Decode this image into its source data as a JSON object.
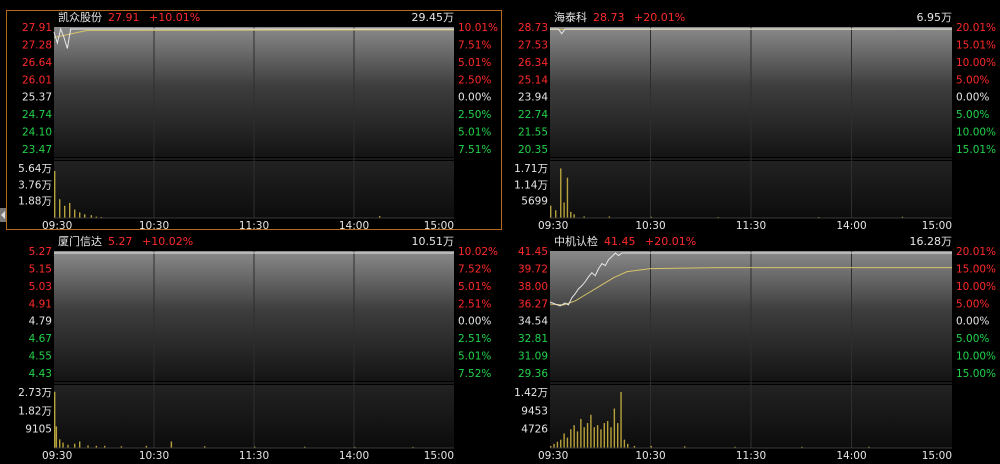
{
  "colors": {
    "up": "#ff2a2a",
    "down": "#22d34a",
    "neutral": "#e6e6e6",
    "price_line": "#e8e8e8",
    "avg_line": "#d8c36a",
    "volume": "#b8a23c",
    "frame_active": "#b56a1c",
    "grid": "#3a3a3a"
  },
  "chart_data": [
    {
      "type": "line",
      "name": "凯众股份",
      "price": "27.91",
      "change_pct": "+10.01%",
      "volume_label": "29.45万",
      "active": true,
      "y_labels_left": [
        {
          "text": "27.91",
          "tone": "up"
        },
        {
          "text": "27.28",
          "tone": "up"
        },
        {
          "text": "26.64",
          "tone": "up"
        },
        {
          "text": "26.01",
          "tone": "up"
        },
        {
          "text": "25.37",
          "tone": "neutral"
        },
        {
          "text": "24.74",
          "tone": "down"
        },
        {
          "text": "24.10",
          "tone": "down"
        },
        {
          "text": "23.47",
          "tone": "down"
        }
      ],
      "y_labels_right": [
        {
          "text": "10.01%",
          "tone": "up"
        },
        {
          "text": "7.51%",
          "tone": "up"
        },
        {
          "text": "5.01%",
          "tone": "up"
        },
        {
          "text": "2.50%",
          "tone": "up"
        },
        {
          "text": "0.00%",
          "tone": "neutral"
        },
        {
          "text": "2.50%",
          "tone": "down"
        },
        {
          "text": "5.01%",
          "tone": "down"
        },
        {
          "text": "7.51%",
          "tone": "down"
        }
      ],
      "vol_labels": [
        "5.64万",
        "3.76万",
        "1.88万"
      ],
      "x_labels": [
        "09:30",
        "10:30",
        "11:30",
        "14:00",
        "15:00"
      ],
      "price_range": [
        23.47,
        27.91
      ],
      "volume_max": 5.64,
      "price_points": [
        [
          0,
          27.8
        ],
        [
          2,
          27.4
        ],
        [
          4,
          27.91
        ],
        [
          6,
          27.6
        ],
        [
          8,
          27.2
        ],
        [
          10,
          27.91
        ],
        [
          12,
          27.91
        ],
        [
          240,
          27.91
        ]
      ],
      "avg_points": [
        [
          0,
          27.6
        ],
        [
          20,
          27.86
        ],
        [
          240,
          27.88
        ]
      ],
      "volume_bars": [
        [
          0,
          5.0
        ],
        [
          3,
          2.0
        ],
        [
          6,
          1.3
        ],
        [
          9,
          1.6
        ],
        [
          12,
          0.9
        ],
        [
          15,
          0.6
        ],
        [
          18,
          0.4
        ],
        [
          22,
          0.3
        ],
        [
          25,
          0.15
        ],
        [
          28,
          0.1
        ],
        [
          195,
          0.2
        ]
      ]
    },
    {
      "type": "line",
      "name": "海泰科",
      "price": "28.73",
      "change_pct": "+20.01%",
      "volume_label": "6.95万",
      "active": false,
      "y_labels_left": [
        {
          "text": "28.73",
          "tone": "up"
        },
        {
          "text": "27.53",
          "tone": "up"
        },
        {
          "text": "26.34",
          "tone": "up"
        },
        {
          "text": "25.14",
          "tone": "up"
        },
        {
          "text": "23.94",
          "tone": "neutral"
        },
        {
          "text": "22.74",
          "tone": "down"
        },
        {
          "text": "21.55",
          "tone": "down"
        },
        {
          "text": "20.35",
          "tone": "down"
        }
      ],
      "y_labels_right": [
        {
          "text": "20.01%",
          "tone": "up"
        },
        {
          "text": "15.01%",
          "tone": "up"
        },
        {
          "text": "10.00%",
          "tone": "up"
        },
        {
          "text": "5.00%",
          "tone": "up"
        },
        {
          "text": "0.00%",
          "tone": "neutral"
        },
        {
          "text": "5.00%",
          "tone": "down"
        },
        {
          "text": "10.00%",
          "tone": "down"
        },
        {
          "text": "15.01%",
          "tone": "down"
        }
      ],
      "vol_labels": [
        "1.71万",
        "1.14万",
        "5699"
      ],
      "x_labels": [
        "09:30",
        "10:30",
        "11:30",
        "14:00",
        "15:00"
      ],
      "price_range": [
        20.35,
        28.73
      ],
      "volume_max": 1.71,
      "price_points": [
        [
          0,
          28.73
        ],
        [
          5,
          28.73
        ],
        [
          7,
          28.4
        ],
        [
          9,
          28.73
        ],
        [
          240,
          28.73
        ]
      ],
      "avg_points": [
        [
          0,
          28.7
        ],
        [
          240,
          28.72
        ]
      ],
      "volume_bars": [
        [
          0,
          0.4
        ],
        [
          3,
          0.25
        ],
        [
          6,
          1.6
        ],
        [
          8,
          0.5
        ],
        [
          10,
          1.3
        ],
        [
          12,
          0.2
        ],
        [
          14,
          0.12
        ],
        [
          20,
          0.05
        ],
        [
          35,
          0.05
        ],
        [
          60,
          0.04
        ],
        [
          100,
          0.03
        ],
        [
          160,
          0.03
        ],
        [
          210,
          0.04
        ]
      ]
    },
    {
      "type": "line",
      "name": "厦门信达",
      "price": "5.27",
      "change_pct": "+10.02%",
      "volume_label": "10.51万",
      "active": false,
      "y_labels_left": [
        {
          "text": "5.27",
          "tone": "up"
        },
        {
          "text": "5.15",
          "tone": "up"
        },
        {
          "text": "5.03",
          "tone": "up"
        },
        {
          "text": "4.91",
          "tone": "up"
        },
        {
          "text": "4.79",
          "tone": "neutral"
        },
        {
          "text": "4.67",
          "tone": "down"
        },
        {
          "text": "4.55",
          "tone": "down"
        },
        {
          "text": "4.43",
          "tone": "down"
        }
      ],
      "y_labels_right": [
        {
          "text": "10.02%",
          "tone": "up"
        },
        {
          "text": "7.52%",
          "tone": "up"
        },
        {
          "text": "5.01%",
          "tone": "up"
        },
        {
          "text": "2.51%",
          "tone": "up"
        },
        {
          "text": "0.00%",
          "tone": "neutral"
        },
        {
          "text": "2.51%",
          "tone": "down"
        },
        {
          "text": "5.01%",
          "tone": "down"
        },
        {
          "text": "7.52%",
          "tone": "down"
        }
      ],
      "vol_labels": [
        "2.73万",
        "1.82万",
        "9105"
      ],
      "x_labels": [
        "09:30",
        "10:30",
        "11:30",
        "14:00",
        "15:00"
      ],
      "price_range": [
        4.43,
        5.27
      ],
      "volume_max": 2.73,
      "price_points": [
        [
          0,
          5.27
        ],
        [
          240,
          5.27
        ]
      ],
      "avg_points": [
        [
          0,
          5.27
        ],
        [
          240,
          5.27
        ]
      ],
      "volume_bars": [
        [
          0,
          2.6
        ],
        [
          1,
          1.0
        ],
        [
          3,
          0.4
        ],
        [
          5,
          0.25
        ],
        [
          8,
          0.15
        ],
        [
          12,
          0.2
        ],
        [
          15,
          0.3
        ],
        [
          20,
          0.12
        ],
        [
          25,
          0.1
        ],
        [
          30,
          0.1
        ],
        [
          40,
          0.08
        ],
        [
          55,
          0.1
        ],
        [
          70,
          0.3
        ],
        [
          90,
          0.08
        ],
        [
          120,
          0.06
        ],
        [
          150,
          0.06
        ],
        [
          180,
          0.05
        ],
        [
          215,
          0.05
        ]
      ]
    },
    {
      "type": "line",
      "name": "中机认检",
      "price": "41.45",
      "change_pct": "+20.01%",
      "volume_label": "16.28万",
      "active": false,
      "y_labels_left": [
        {
          "text": "41.45",
          "tone": "up"
        },
        {
          "text": "39.72",
          "tone": "up"
        },
        {
          "text": "38.00",
          "tone": "up"
        },
        {
          "text": "36.27",
          "tone": "up"
        },
        {
          "text": "34.54",
          "tone": "neutral"
        },
        {
          "text": "32.81",
          "tone": "down"
        },
        {
          "text": "31.09",
          "tone": "down"
        },
        {
          "text": "29.36",
          "tone": "down"
        }
      ],
      "y_labels_right": [
        {
          "text": "20.01%",
          "tone": "up"
        },
        {
          "text": "15.00%",
          "tone": "up"
        },
        {
          "text": "10.00%",
          "tone": "up"
        },
        {
          "text": "5.00%",
          "tone": "up"
        },
        {
          "text": "0.00%",
          "tone": "neutral"
        },
        {
          "text": "5.00%",
          "tone": "down"
        },
        {
          "text": "10.00%",
          "tone": "down"
        },
        {
          "text": "15.00%",
          "tone": "down"
        }
      ],
      "vol_labels": [
        "1.42万",
        "9453",
        "4726"
      ],
      "x_labels": [
        "09:30",
        "10:30",
        "11:30",
        "14:00",
        "15:00"
      ],
      "price_range": [
        29.36,
        41.45
      ],
      "volume_max": 1.42,
      "price_points": [
        [
          0,
          36.6
        ],
        [
          3,
          36.4
        ],
        [
          6,
          36.2
        ],
        [
          9,
          36.5
        ],
        [
          11,
          36.3
        ],
        [
          13,
          37.0
        ],
        [
          15,
          37.4
        ],
        [
          17,
          37.9
        ],
        [
          19,
          38.2
        ],
        [
          21,
          38.6
        ],
        [
          23,
          39.1
        ],
        [
          25,
          39.5
        ],
        [
          27,
          39.2
        ],
        [
          29,
          39.9
        ],
        [
          31,
          40.4
        ],
        [
          33,
          40.2
        ],
        [
          35,
          40.8
        ],
        [
          37,
          41.1
        ],
        [
          39,
          41.45
        ],
        [
          41,
          41.2
        ],
        [
          43,
          41.45
        ],
        [
          240,
          41.45
        ]
      ],
      "avg_points": [
        [
          0,
          36.4
        ],
        [
          8,
          36.3
        ],
        [
          15,
          36.7
        ],
        [
          22,
          37.4
        ],
        [
          30,
          38.2
        ],
        [
          38,
          39.0
        ],
        [
          46,
          39.6
        ],
        [
          60,
          39.9
        ],
        [
          100,
          40.0
        ],
        [
          240,
          40.0
        ]
      ],
      "volume_bars": [
        [
          0,
          0.05
        ],
        [
          2,
          0.1
        ],
        [
          4,
          0.15
        ],
        [
          6,
          0.2
        ],
        [
          8,
          0.35
        ],
        [
          10,
          0.25
        ],
        [
          12,
          0.45
        ],
        [
          14,
          0.55
        ],
        [
          16,
          0.4
        ],
        [
          18,
          0.7
        ],
        [
          20,
          0.5
        ],
        [
          22,
          0.6
        ],
        [
          24,
          0.8
        ],
        [
          26,
          0.5
        ],
        [
          28,
          0.55
        ],
        [
          30,
          0.45
        ],
        [
          32,
          0.6
        ],
        [
          34,
          0.65
        ],
        [
          36,
          0.5
        ],
        [
          38,
          0.95
        ],
        [
          40,
          0.6
        ],
        [
          42,
          1.35
        ],
        [
          44,
          0.2
        ],
        [
          46,
          0.1
        ],
        [
          50,
          0.05
        ],
        [
          60,
          0.05
        ],
        [
          80,
          0.04
        ],
        [
          110,
          0.03
        ],
        [
          150,
          0.03
        ],
        [
          190,
          0.03
        ]
      ]
    }
  ]
}
